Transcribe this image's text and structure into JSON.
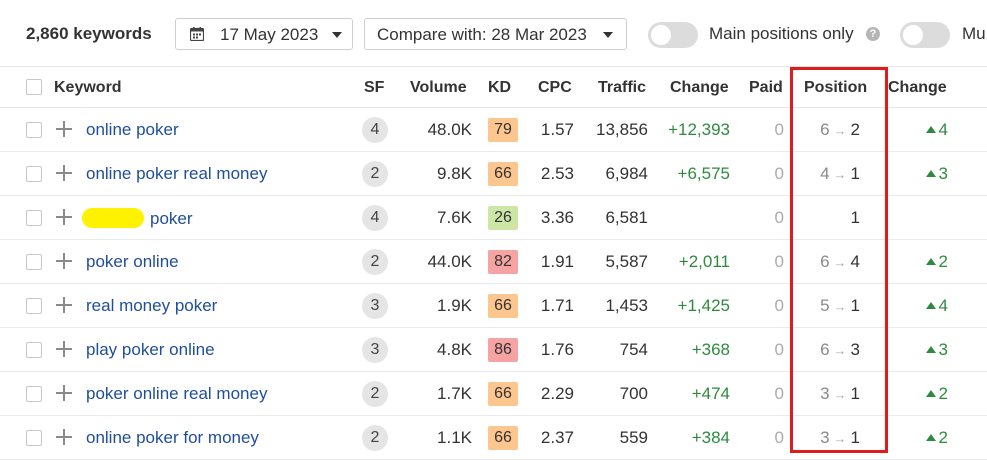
{
  "toolbar": {
    "keyword_count": "2,860 keywords",
    "date_label": "17 May 2023",
    "compare_label": "Compare with: 28 Mar 2023",
    "main_positions_label": "Main positions only",
    "multi_label": "Mu",
    "help_glyph": "?"
  },
  "columns": {
    "keyword": "Keyword",
    "sf": "SF",
    "volume": "Volume",
    "kd": "KD",
    "cpc": "CPC",
    "traffic": "Traffic",
    "change": "Change",
    "paid": "Paid",
    "position": "Position",
    "position_change": "Change"
  },
  "colors": {
    "kd_green": "#cde6a6",
    "kd_orange": "#fdc68e",
    "kd_red": "#f5a3a3",
    "positive": "#2e8b3e",
    "link": "#1f4e99",
    "highlight": "#e01b1b",
    "redaction": "#fff200"
  },
  "rows": [
    {
      "keyword": "online poker",
      "redacted_prefix": false,
      "sf": "4",
      "volume": "48.0K",
      "kd": "79",
      "kd_level": "orange",
      "cpc": "1.57",
      "traffic": "13,856",
      "change": "+12,393",
      "paid": "0",
      "pos_old": "6",
      "pos_new": "2",
      "pos_change": "4"
    },
    {
      "keyword": "online poker real money",
      "redacted_prefix": false,
      "sf": "2",
      "volume": "9.8K",
      "kd": "66",
      "kd_level": "orange",
      "cpc": "2.53",
      "traffic": "6,984",
      "change": "+6,575",
      "paid": "0",
      "pos_old": "4",
      "pos_new": "1",
      "pos_change": "3"
    },
    {
      "keyword": "poker",
      "redacted_prefix": true,
      "sf": "4",
      "volume": "7.6K",
      "kd": "26",
      "kd_level": "green",
      "cpc": "3.36",
      "traffic": "6,581",
      "change": "",
      "paid": "0",
      "pos_old": "",
      "pos_new": "1",
      "pos_change": ""
    },
    {
      "keyword": "poker online",
      "redacted_prefix": false,
      "sf": "2",
      "volume": "44.0K",
      "kd": "82",
      "kd_level": "red",
      "cpc": "1.91",
      "traffic": "5,587",
      "change": "+2,011",
      "paid": "0",
      "pos_old": "6",
      "pos_new": "4",
      "pos_change": "2"
    },
    {
      "keyword": "real money poker",
      "redacted_prefix": false,
      "sf": "3",
      "volume": "1.9K",
      "kd": "66",
      "kd_level": "orange",
      "cpc": "1.71",
      "traffic": "1,453",
      "change": "+1,425",
      "paid": "0",
      "pos_old": "5",
      "pos_new": "1",
      "pos_change": "4"
    },
    {
      "keyword": "play poker online",
      "redacted_prefix": false,
      "sf": "3",
      "volume": "4.8K",
      "kd": "86",
      "kd_level": "red",
      "cpc": "1.76",
      "traffic": "754",
      "change": "+368",
      "paid": "0",
      "pos_old": "6",
      "pos_new": "3",
      "pos_change": "3"
    },
    {
      "keyword": "poker online real money",
      "redacted_prefix": false,
      "sf": "2",
      "volume": "1.7K",
      "kd": "66",
      "kd_level": "orange",
      "cpc": "2.29",
      "traffic": "700",
      "change": "+474",
      "paid": "0",
      "pos_old": "3",
      "pos_new": "1",
      "pos_change": "2"
    },
    {
      "keyword": "online poker for money",
      "redacted_prefix": false,
      "sf": "2",
      "volume": "1.1K",
      "kd": "66",
      "kd_level": "orange",
      "cpc": "2.37",
      "traffic": "559",
      "change": "+384",
      "paid": "0",
      "pos_old": "3",
      "pos_new": "1",
      "pos_change": "2"
    }
  ],
  "icons": {
    "date_button": "calendar-icon",
    "dropdown": "chevron-down-icon",
    "row_add": "plus-icon",
    "help": "help-icon",
    "position_arrow": "arrow-right-icon",
    "position_up": "triangle-up-icon"
  }
}
